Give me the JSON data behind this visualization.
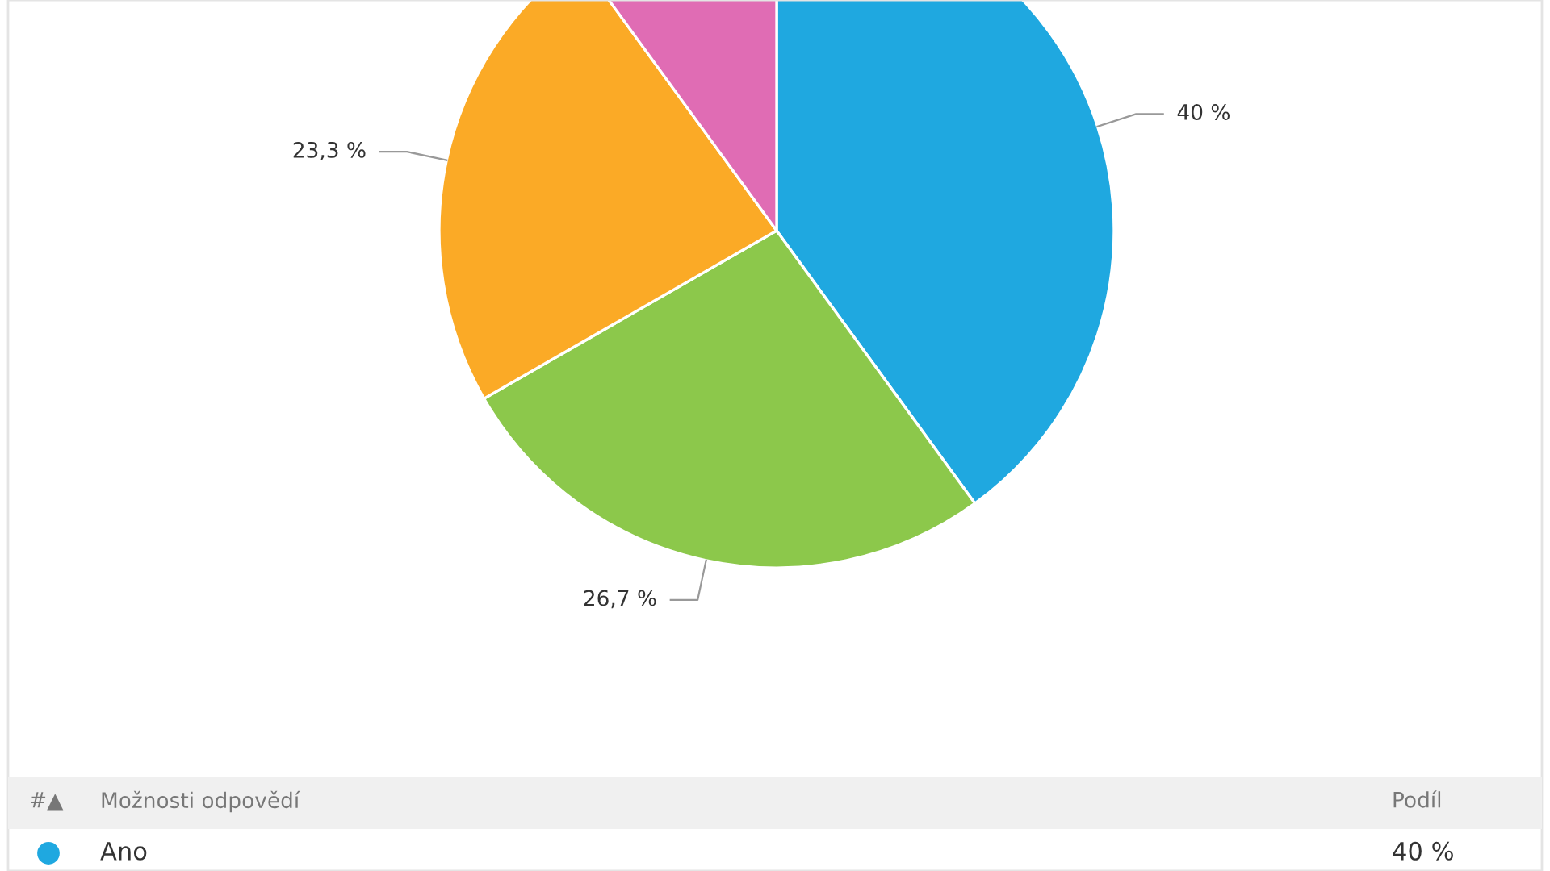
{
  "chart_data": {
    "type": "pie",
    "categories": [
      "Ano",
      null,
      null,
      null
    ],
    "values": [
      40,
      26.7,
      23.3,
      10
    ],
    "colors": [
      "#1fa8e0",
      "#8cc84b",
      "#fbaa26",
      "#e06cb4"
    ],
    "value_labels": [
      "40 %",
      "26,7 %",
      "23,3 %",
      null
    ],
    "annotations": [
      "#▲",
      "Možnosti odpovědí",
      "Podíl"
    ]
  }
}
